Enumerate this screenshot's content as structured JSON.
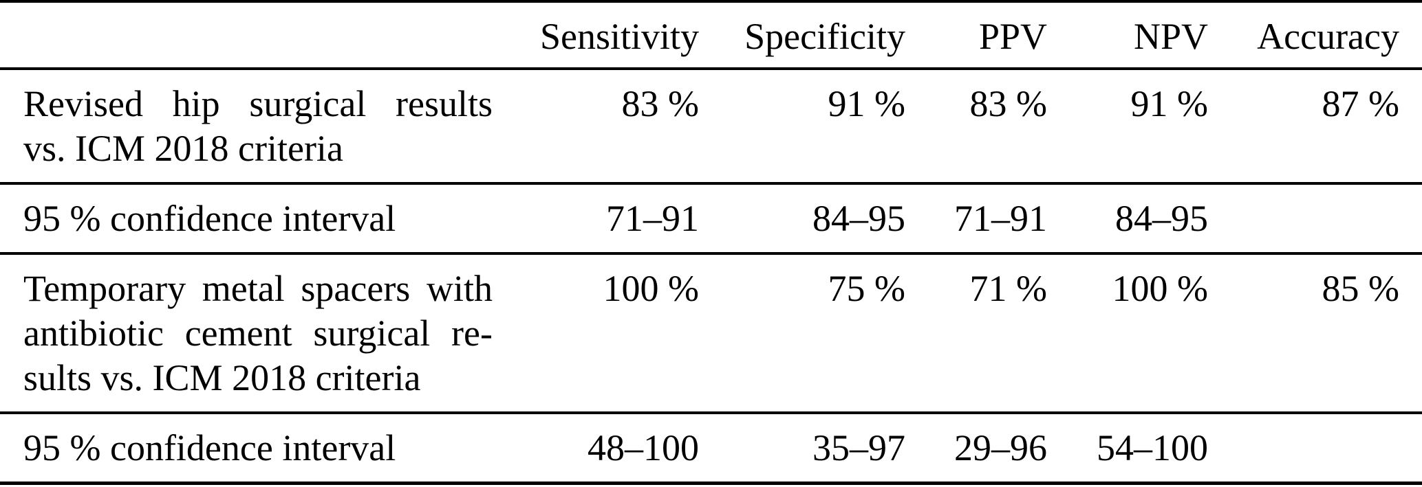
{
  "colors": {
    "background": "#ffffff",
    "text": "#000000",
    "rule": "#000000"
  },
  "table": {
    "columns": [
      "",
      "Sensitivity",
      "Specificity",
      "PPV",
      "NPV",
      "Accuracy"
    ],
    "rows": [
      {
        "label_lines": [
          "Revised hip surgical results",
          "vs. ICM 2018 criteria"
        ],
        "values": [
          "83 %",
          "91 %",
          "83 %",
          "91 %",
          "87 %"
        ]
      },
      {
        "label_lines": [
          "95 % confidence interval"
        ],
        "values": [
          "71–91",
          "84–95",
          "71–91",
          "84–95",
          ""
        ]
      },
      {
        "label_lines": [
          "Temporary metal spacers with",
          "antibiotic cement surgical re-",
          "sults vs. ICM 2018 criteria"
        ],
        "values": [
          "100 %",
          "75 %",
          "71 %",
          "100 %",
          "85 %"
        ]
      },
      {
        "label_lines": [
          "95 % confidence interval"
        ],
        "values": [
          "48–100",
          "35–97",
          "29–96",
          "54–100",
          ""
        ]
      }
    ]
  }
}
